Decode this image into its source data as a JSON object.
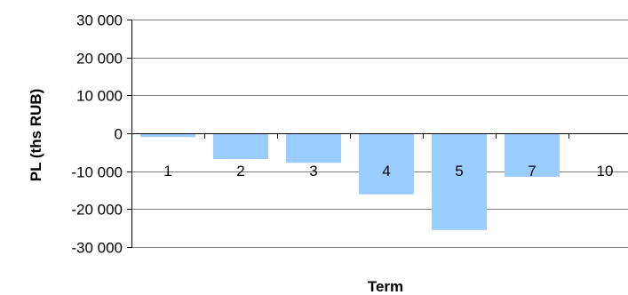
{
  "chart_data": {
    "type": "bar",
    "title": "",
    "xlabel": "Term",
    "ylabel": "PL (ths RUB)",
    "categories": [
      "1",
      "2",
      "3",
      "4",
      "5",
      "7",
      "10"
    ],
    "values": [
      -1000,
      -6800,
      -7800,
      -16100,
      -25500,
      -11500,
      0
    ],
    "ylim": [
      -30000,
      30000
    ],
    "yticks": [
      30000,
      20000,
      10000,
      0,
      -10000,
      -20000,
      -30000
    ],
    "ytick_labels": [
      "30 000",
      "20 000",
      "10 000",
      "0",
      "-10 000",
      "-20 000",
      "-30 000"
    ],
    "grid": true,
    "legend": "none",
    "bar_color": "#99ccff",
    "grid_color": "#808080",
    "axis_color": "#000000"
  }
}
